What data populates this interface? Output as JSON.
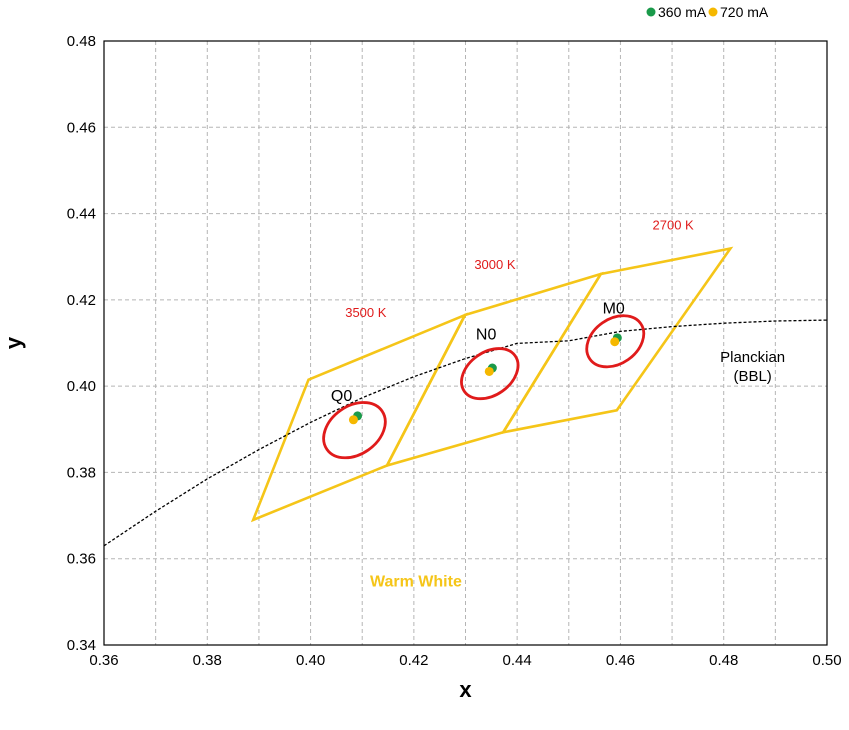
{
  "chart_data": {
    "type": "scatter",
    "title": "",
    "xlabel": "x",
    "ylabel": "y",
    "xlim": [
      0.36,
      0.5
    ],
    "ylim": [
      0.34,
      0.48
    ],
    "x_ticks": [
      0.36,
      0.38,
      0.4,
      0.42,
      0.44,
      0.46,
      0.48,
      0.5
    ],
    "y_ticks": [
      0.34,
      0.36,
      0.38,
      0.4,
      0.42,
      0.44,
      0.46,
      0.48
    ],
    "x_tick_labels": [
      "0.36",
      "0.38",
      "0.40",
      "0.42",
      "0.44",
      "0.46",
      "0.48",
      "0.50"
    ],
    "y_tick_labels": [
      "0.34",
      "0.36",
      "0.38",
      "0.40",
      "0.42",
      "0.44",
      "0.46",
      "0.48"
    ],
    "x_minor_step": 0.01,
    "grid": true,
    "legend_position": "top-right",
    "series": [
      {
        "name": "360 mA",
        "color": "#1a9a4a",
        "points": [
          {
            "bin": "Q0",
            "x": 0.4091,
            "y": 0.3931
          },
          {
            "bin": "N0",
            "x": 0.4352,
            "y": 0.4042
          },
          {
            "bin": "M0",
            "x": 0.4594,
            "y": 0.4112
          }
        ]
      },
      {
        "name": "720 mA",
        "color": "#f5b800",
        "points": [
          {
            "bin": "Q0",
            "x": 0.4083,
            "y": 0.3922
          },
          {
            "bin": "N0",
            "x": 0.4346,
            "y": 0.4034
          },
          {
            "bin": "M0",
            "x": 0.4589,
            "y": 0.4103
          }
        ]
      }
    ],
    "bins": [
      {
        "label": "3500 K",
        "polygon": [
          [
            0.3996,
            0.4015
          ],
          [
            0.4299,
            0.4165
          ],
          [
            0.4148,
            0.3816
          ],
          [
            0.3889,
            0.369
          ]
        ]
      },
      {
        "label": "3000 K",
        "polygon": [
          [
            0.4299,
            0.4165
          ],
          [
            0.4562,
            0.426
          ],
          [
            0.4373,
            0.3893
          ],
          [
            0.4148,
            0.3816
          ]
        ]
      },
      {
        "label": "2700 K",
        "polygon": [
          [
            0.4562,
            0.426
          ],
          [
            0.4813,
            0.4319
          ],
          [
            0.4593,
            0.3944
          ],
          [
            0.4373,
            0.3893
          ]
        ]
      }
    ],
    "bin_color": "#f5c518",
    "ellipses": [
      {
        "label": "Q0",
        "cx": 0.4085,
        "cy": 0.3898,
        "rx": 0.0065,
        "ry": 0.0056,
        "angle": -35
      },
      {
        "label": "N0",
        "cx": 0.4347,
        "cy": 0.4029,
        "rx": 0.006,
        "ry": 0.005,
        "angle": -35
      },
      {
        "label": "M0",
        "cx": 0.459,
        "cy": 0.4104,
        "rx": 0.006,
        "ry": 0.0052,
        "angle": -35
      }
    ],
    "ellipse_color": "#e01b1b",
    "bin_labels": [
      {
        "text": "Q0",
        "x": 0.406,
        "y": 0.3965
      },
      {
        "text": "N0",
        "x": 0.434,
        "y": 0.4108
      },
      {
        "text": "M0",
        "x": 0.4587,
        "y": 0.4168
      }
    ],
    "cct_labels": [
      {
        "text": "3500 K",
        "x": 0.4107,
        "y": 0.416
      },
      {
        "text": "3000 K",
        "x": 0.4357,
        "y": 0.4272
      },
      {
        "text": "2700 K",
        "x": 0.4702,
        "y": 0.4363
      }
    ],
    "cct_color": "#e01b1b",
    "region_label": {
      "text": "Warm White",
      "x": 0.4204,
      "y": 0.3536,
      "color": "#f5c518"
    },
    "planckian": {
      "label_line1": "Planckian",
      "label_line2": "(BBL)",
      "label_x": 0.4856,
      "label_y": 0.4056,
      "points": [
        [
          0.36,
          0.363
        ],
        [
          0.37,
          0.371
        ],
        [
          0.38,
          0.3785
        ],
        [
          0.39,
          0.3853
        ],
        [
          0.4,
          0.3916
        ],
        [
          0.41,
          0.3973
        ],
        [
          0.42,
          0.4022
        ],
        [
          0.43,
          0.4064
        ],
        [
          0.44,
          0.4099
        ],
        [
          0.45,
          0.4105
        ],
        [
          0.46,
          0.4127
        ],
        [
          0.47,
          0.4138
        ],
        [
          0.48,
          0.4146
        ],
        [
          0.49,
          0.4151
        ],
        [
          0.5,
          0.4153
        ]
      ]
    }
  }
}
